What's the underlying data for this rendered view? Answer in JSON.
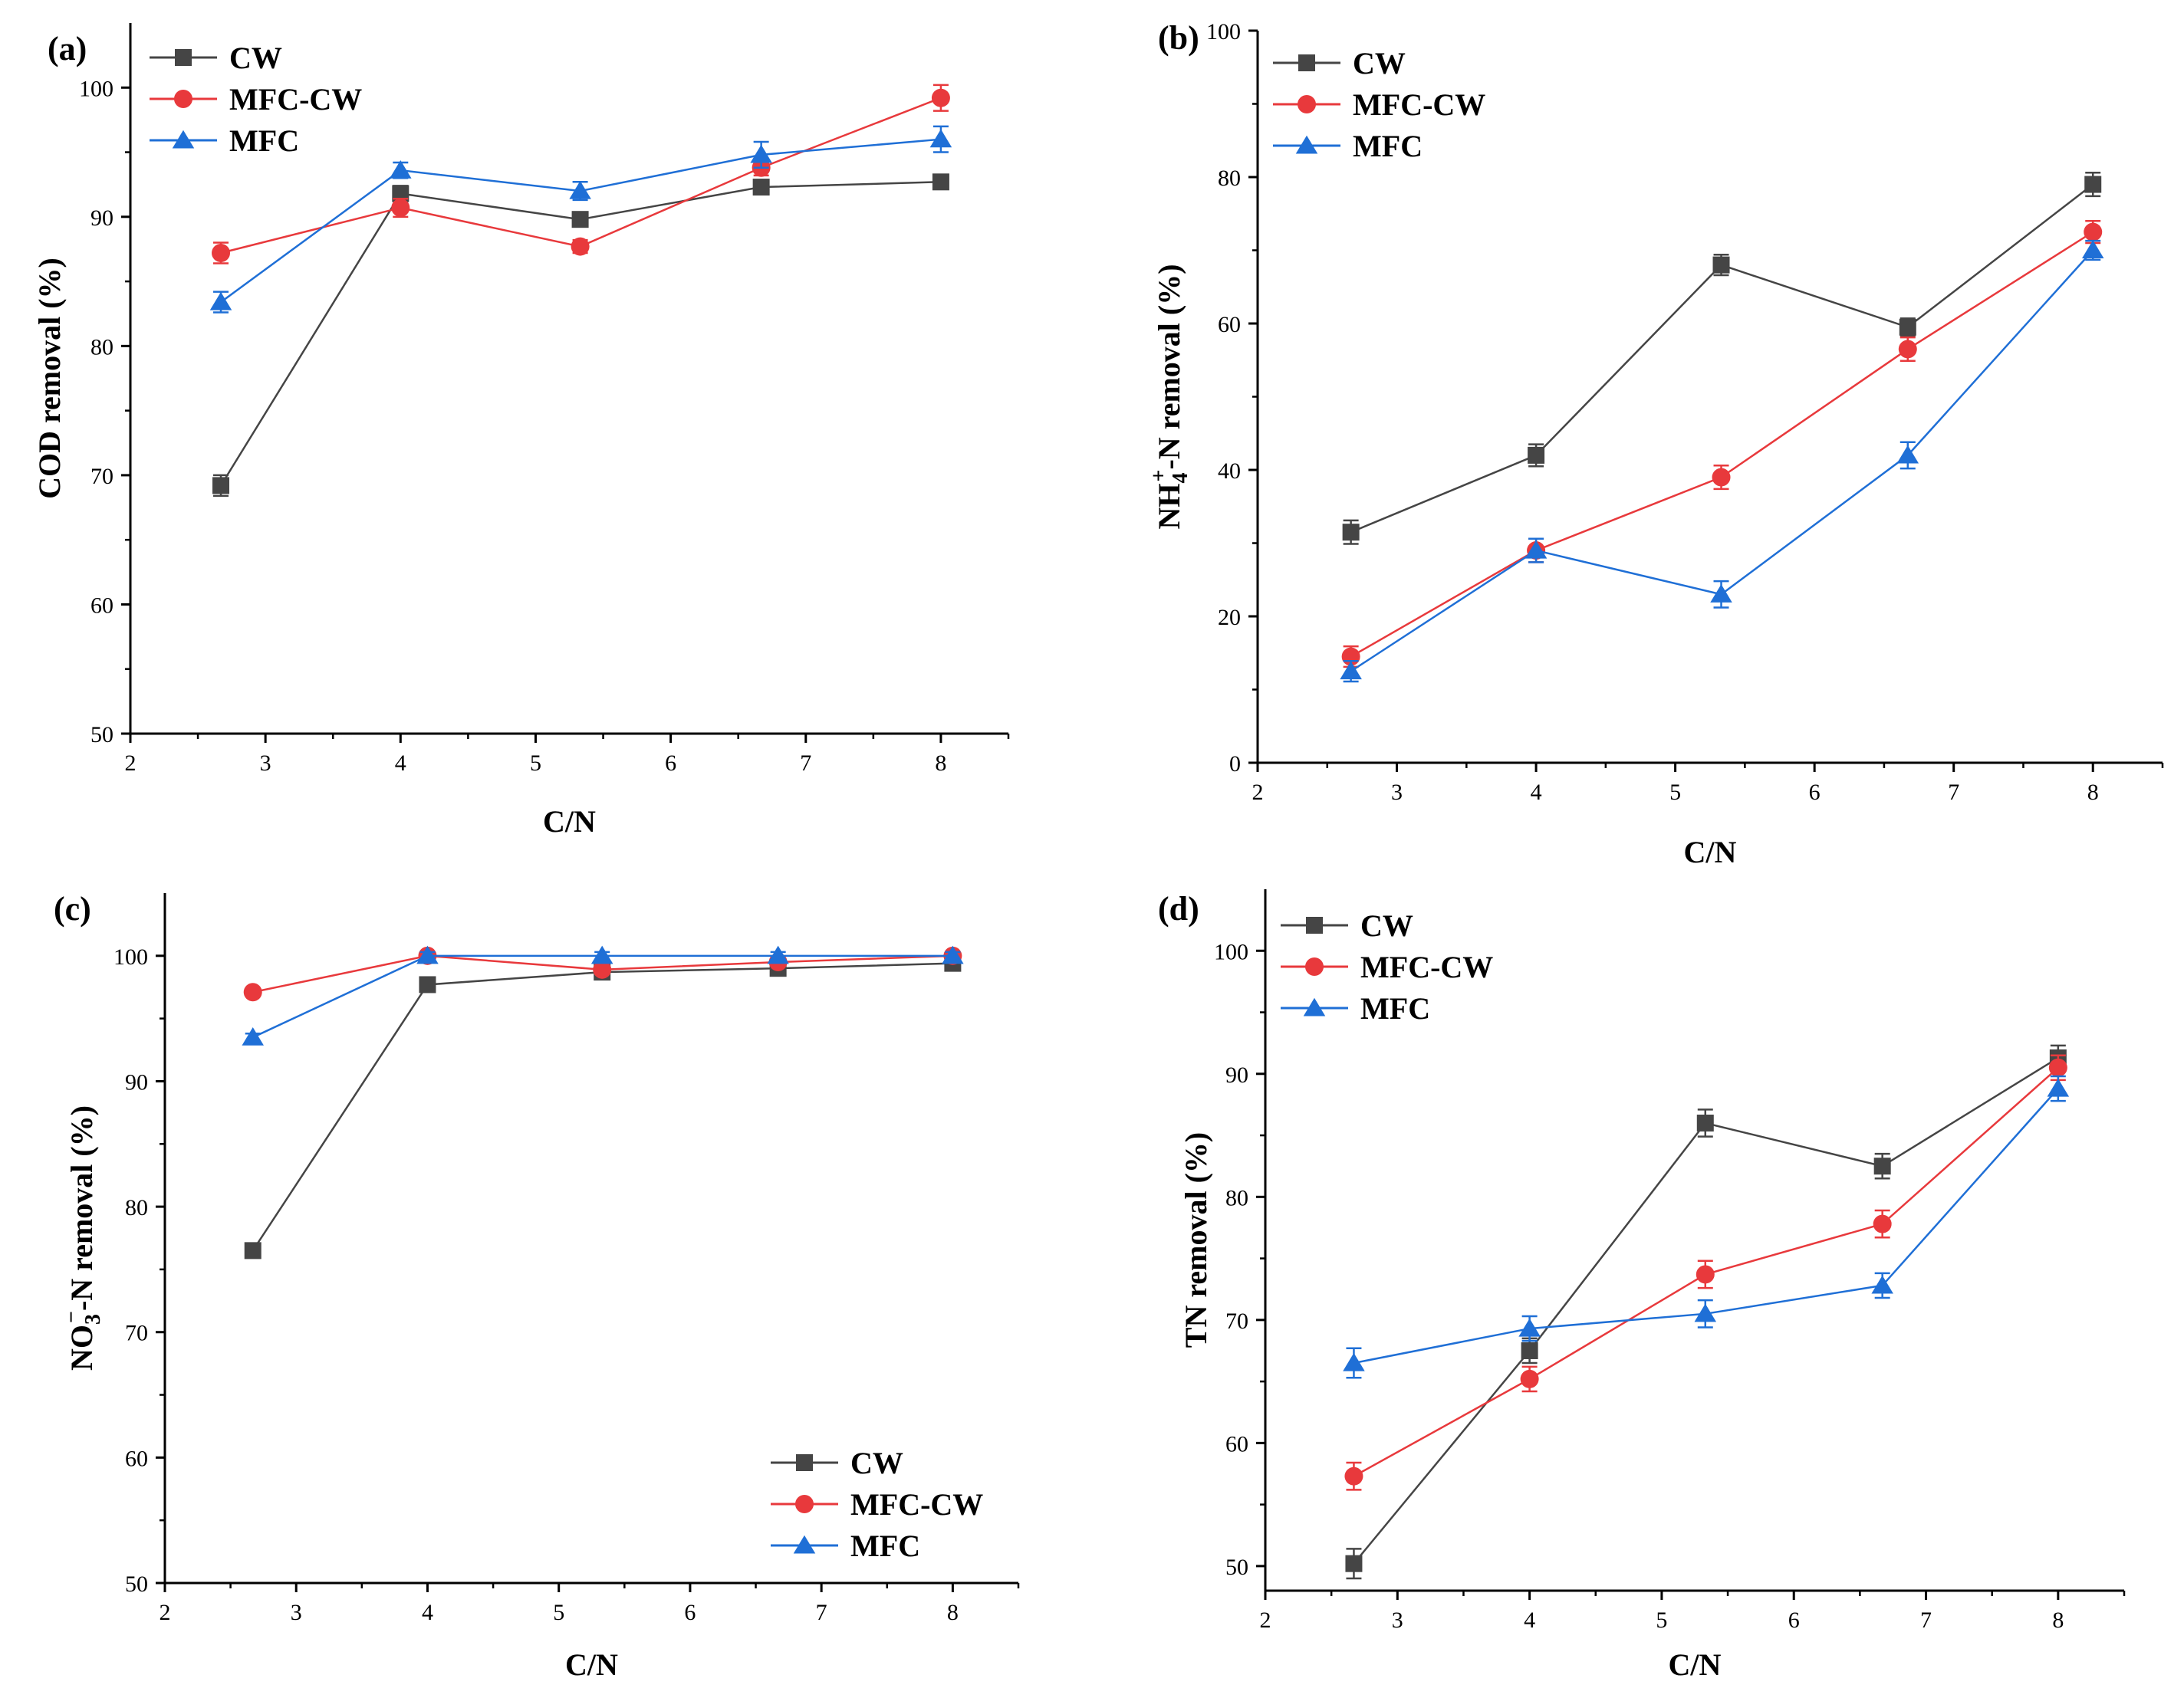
{
  "chart_data": [
    {
      "type": "line",
      "panel_label": "(a)",
      "xlabel": "C/N",
      "ylabel": "COD removal (%)",
      "xlim": [
        2,
        8.5
      ],
      "ylim": [
        50,
        105
      ],
      "xticks": [
        "2",
        "3",
        "4",
        "5",
        "6",
        "7",
        "8"
      ],
      "yticks": [
        "50",
        "60",
        "70",
        "80",
        "90",
        "100"
      ],
      "x": [
        2.67,
        4,
        5.33,
        6.67,
        8
      ],
      "legend_position": "top-left",
      "series": [
        {
          "name": "CW",
          "color": "#454545",
          "marker": "square",
          "values": [
            69.2,
            91.8,
            89.8,
            92.3,
            92.7
          ],
          "errors": [
            0.8,
            0.6,
            0.5,
            0.5,
            0.4
          ]
        },
        {
          "name": "MFC-CW",
          "color": "#e8393c",
          "marker": "circle",
          "values": [
            87.2,
            90.7,
            87.7,
            93.8,
            99.2
          ],
          "errors": [
            0.8,
            0.7,
            0.5,
            0.6,
            1.0
          ]
        },
        {
          "name": "MFC",
          "color": "#1f6fd6",
          "marker": "triangle",
          "values": [
            83.4,
            93.6,
            92.0,
            94.8,
            96.0
          ],
          "errors": [
            0.8,
            0.6,
            0.7,
            1.0,
            1.0
          ]
        }
      ]
    },
    {
      "type": "line",
      "panel_label": "(b)",
      "xlabel": "C/N",
      "ylabel_main": "NH",
      "ylabel_sub": "4",
      "ylabel_sup": "+",
      "ylabel_rest": "-N removal (%)",
      "xlim": [
        2,
        8.5
      ],
      "ylim": [
        0,
        100
      ],
      "xticks": [
        "2",
        "3",
        "4",
        "5",
        "6",
        "7",
        "8"
      ],
      "yticks": [
        "0",
        "20",
        "40",
        "60",
        "80",
        "100"
      ],
      "x": [
        2.67,
        4,
        5.33,
        6.67,
        8
      ],
      "legend_position": "top-left",
      "series": [
        {
          "name": "CW",
          "color": "#454545",
          "marker": "square",
          "values": [
            31.5,
            42.0,
            68.0,
            59.5,
            79.0
          ],
          "errors": [
            1.6,
            1.5,
            1.4,
            1.2,
            1.6
          ]
        },
        {
          "name": "MFC-CW",
          "color": "#e8393c",
          "marker": "circle",
          "values": [
            14.5,
            29.0,
            39.0,
            56.5,
            72.5
          ],
          "errors": [
            1.4,
            1.6,
            1.6,
            1.6,
            1.5
          ]
        },
        {
          "name": "MFC",
          "color": "#1f6fd6",
          "marker": "triangle",
          "values": [
            12.5,
            29.0,
            23.0,
            42.0,
            70.0
          ],
          "errors": [
            1.4,
            1.6,
            1.8,
            1.8,
            1.3
          ]
        }
      ]
    },
    {
      "type": "line",
      "panel_label": "(c)",
      "xlabel": "C/N",
      "ylabel_main": "NO",
      "ylabel_sub": "3",
      "ylabel_sup": "−",
      "ylabel_rest": "-N removal (%)",
      "xlim": [
        2,
        8.5
      ],
      "ylim": [
        50,
        105
      ],
      "xticks": [
        "2",
        "3",
        "4",
        "5",
        "6",
        "7",
        "8"
      ],
      "yticks": [
        "50",
        "60",
        "70",
        "80",
        "90",
        "100"
      ],
      "x": [
        2.67,
        4,
        5.33,
        6.67,
        8
      ],
      "legend_position": "bottom-right",
      "series": [
        {
          "name": "CW",
          "color": "#454545",
          "marker": "square",
          "values": [
            76.5,
            97.7,
            98.7,
            99.0,
            99.4
          ],
          "errors": [
            0.3,
            0.3,
            0.3,
            0.3,
            0.3
          ]
        },
        {
          "name": "MFC-CW",
          "color": "#e8393c",
          "marker": "circle",
          "values": [
            97.1,
            100.0,
            98.9,
            99.5,
            100.0
          ],
          "errors": [
            0.3,
            0.3,
            0.3,
            0.3,
            0.3
          ]
        },
        {
          "name": "MFC",
          "color": "#1f6fd6",
          "marker": "triangle",
          "values": [
            93.5,
            100.0,
            100.0,
            100.0,
            100.0
          ],
          "errors": [
            0.3,
            0.3,
            0.3,
            0.3,
            0.3
          ]
        }
      ]
    },
    {
      "type": "line",
      "panel_label": "(d)",
      "xlabel": "C/N",
      "ylabel": "TN removal (%)",
      "xlim": [
        2,
        8.5
      ],
      "ylim": [
        48,
        105
      ],
      "xticks": [
        "2",
        "3",
        "4",
        "5",
        "6",
        "7",
        "8"
      ],
      "yticks": [
        "50",
        "60",
        "70",
        "80",
        "90",
        "100"
      ],
      "x": [
        2.67,
        4,
        5.33,
        6.67,
        8
      ],
      "legend_position": "top-left",
      "series": [
        {
          "name": "CW",
          "color": "#454545",
          "marker": "square",
          "values": [
            50.2,
            67.5,
            86.0,
            82.5,
            91.3
          ],
          "errors": [
            1.2,
            1.0,
            1.1,
            1.0,
            1.0
          ]
        },
        {
          "name": "MFC-CW",
          "color": "#e8393c",
          "marker": "circle",
          "values": [
            57.3,
            65.2,
            73.7,
            77.8,
            90.5
          ],
          "errors": [
            1.1,
            1.0,
            1.1,
            1.1,
            1.0
          ]
        },
        {
          "name": "MFC",
          "color": "#1f6fd6",
          "marker": "triangle",
          "values": [
            66.5,
            69.3,
            70.5,
            72.8,
            88.8
          ],
          "errors": [
            1.2,
            1.0,
            1.1,
            1.0,
            1.0
          ]
        }
      ]
    }
  ]
}
